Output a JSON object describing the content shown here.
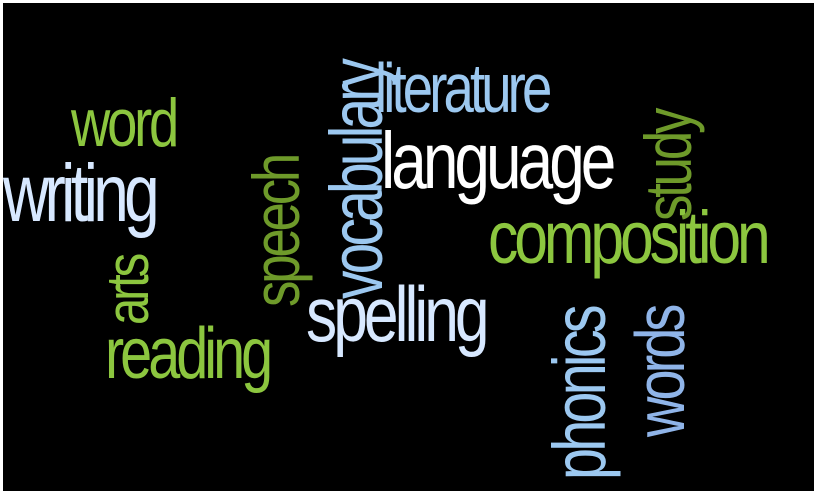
{
  "colors": {
    "background": "#000000",
    "white": "#ffffff",
    "pale_blue": "#d7e8ff",
    "sky_blue": "#9cc8f0",
    "periwinkle": "#8fb4e8",
    "lime_green": "#8cc63f",
    "olive_green": "#6e9a2a"
  },
  "words": {
    "literature": "literature",
    "word": "word",
    "writing": "writing",
    "language": "language",
    "composition": "composition",
    "arts": "arts",
    "speech": "speech",
    "vocabulary": "vocabulary",
    "study": "study",
    "spelling": "spelling",
    "reading": "reading",
    "phonics": "phonics",
    "words": "words"
  }
}
